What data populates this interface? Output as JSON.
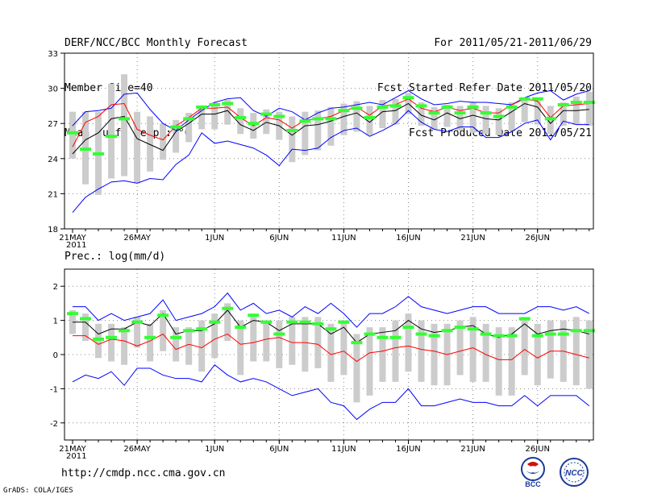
{
  "header": {
    "left": [
      "DERF/NCC/BCC Monthly Forecast",
      "Member Size=40",
      "Mean Surf. Temp.: °C"
    ],
    "right": [
      "For 2011/05/21-2011/06/29",
      "Fcst Started Refer Date 2011/05/20",
      "Fcst Produced Date 2011/05/21"
    ]
  },
  "url": "http://cmdp.ncc.cma.gov.cn",
  "footer": "GrADS: COLA/IGES",
  "logos": {
    "bcc": "BCC",
    "ncc": "NCC"
  },
  "colors": {
    "max_min": "#0000ff",
    "mean": "#000000",
    "median": "#ff0000",
    "box": "#cccccc",
    "obs": "#33ff33"
  },
  "chart_data": [
    {
      "type": "line",
      "title": "Mean Surf. Temp.: °C",
      "xlabel": "",
      "ylabel": "°C",
      "ylim": [
        18,
        33
      ],
      "yticks": [
        18,
        21,
        24,
        27,
        30,
        33
      ],
      "xticks": [
        {
          "index": 0,
          "label": "21MAY",
          "sub": "2011"
        },
        {
          "index": 5,
          "label": "26MAY"
        },
        {
          "index": 11,
          "label": "1JUN"
        },
        {
          "index": 16,
          "label": "6JUN"
        },
        {
          "index": 21,
          "label": "11JUN"
        },
        {
          "index": 26,
          "label": "16JUN"
        },
        {
          "index": 31,
          "label": "21JUN"
        },
        {
          "index": 36,
          "label": "26JUN"
        }
      ],
      "series": [
        {
          "name": "max",
          "values": [
            26.8,
            28.0,
            28.1,
            28.3,
            29.5,
            29.6,
            28.2,
            27.0,
            26.4,
            27.3,
            28.1,
            28.8,
            29.1,
            29.2,
            28.1,
            27.6,
            28.3,
            28.0,
            27.3,
            27.9,
            28.3,
            28.4,
            28.6,
            28.8,
            28.6,
            29.2,
            29.8,
            29.1,
            28.6,
            28.7,
            28.9,
            28.8,
            28.8,
            28.7,
            28.6,
            29.2,
            29.6,
            29.8,
            29.0,
            29.5,
            29.8
          ]
        },
        {
          "name": "median",
          "values": [
            25.0,
            27.1,
            27.6,
            28.6,
            28.7,
            26.5,
            26.0,
            25.6,
            26.8,
            27.5,
            28.3,
            28.3,
            28.4,
            27.5,
            26.8,
            27.5,
            27.3,
            26.6,
            27.3,
            27.4,
            27.6,
            28.1,
            28.4,
            27.7,
            28.5,
            28.6,
            29.1,
            28.3,
            28.0,
            28.4,
            28.1,
            28.3,
            27.9,
            27.9,
            28.6,
            29.1,
            28.9,
            27.5,
            28.5,
            28.6,
            28.7
          ]
        },
        {
          "name": "mean",
          "values": [
            24.4,
            25.6,
            26.2,
            27.4,
            27.6,
            25.7,
            25.2,
            24.7,
            26.3,
            27.0,
            27.8,
            27.8,
            28.1,
            26.9,
            26.4,
            27.1,
            26.8,
            26.0,
            26.8,
            26.9,
            27.2,
            27.6,
            27.9,
            27.1,
            28.0,
            28.1,
            28.7,
            27.7,
            27.3,
            27.9,
            27.4,
            27.7,
            27.4,
            27.3,
            28.0,
            28.7,
            28.4,
            27.0,
            28.1,
            28.1,
            28.2
          ]
        },
        {
          "name": "min",
          "values": [
            19.4,
            20.7,
            21.4,
            22.0,
            22.1,
            21.9,
            22.3,
            22.2,
            23.5,
            24.3,
            26.2,
            25.3,
            25.5,
            25.2,
            24.9,
            24.3,
            23.4,
            24.8,
            24.7,
            24.9,
            25.8,
            26.4,
            26.6,
            25.9,
            26.4,
            27.0,
            28.1,
            27.1,
            26.5,
            26.3,
            26.7,
            26.7,
            25.8,
            25.8,
            26.3,
            27.0,
            27.3,
            25.6,
            27.2,
            26.9,
            26.9
          ]
        }
      ],
      "boxes": [
        {
          "low": 24.0,
          "high": 28.0
        },
        {
          "low": 21.8,
          "high": 28.0
        },
        {
          "low": 20.9,
          "high": 28.0
        },
        {
          "low": 22.3,
          "high": 30.4
        },
        {
          "low": 22.5,
          "high": 31.2
        },
        {
          "low": 21.9,
          "high": 28.0
        },
        {
          "low": 22.9,
          "high": 27.6
        },
        {
          "low": 23.9,
          "high": 27.0
        },
        {
          "low": 24.5,
          "high": 27.3
        },
        {
          "low": 25.4,
          "high": 27.9
        },
        {
          "low": 26.5,
          "high": 28.5
        },
        {
          "low": 26.5,
          "high": 28.8
        },
        {
          "low": 26.9,
          "high": 29.0
        },
        {
          "low": 26.1,
          "high": 28.3
        },
        {
          "low": 25.7,
          "high": 27.9
        },
        {
          "low": 26.1,
          "high": 28.2
        },
        {
          "low": 25.6,
          "high": 28.0
        },
        {
          "low": 23.7,
          "high": 27.6
        },
        {
          "low": 24.3,
          "high": 28.0
        },
        {
          "low": 24.7,
          "high": 28.1
        },
        {
          "low": 25.1,
          "high": 28.4
        },
        {
          "low": 26.0,
          "high": 28.7
        },
        {
          "low": 26.3,
          "high": 28.9
        },
        {
          "low": 26.0,
          "high": 28.5
        },
        {
          "low": 26.6,
          "high": 29.0
        },
        {
          "low": 26.9,
          "high": 29.1
        },
        {
          "low": 27.8,
          "high": 29.6
        },
        {
          "low": 26.8,
          "high": 28.8
        },
        {
          "low": 26.5,
          "high": 28.4
        },
        {
          "low": 26.7,
          "high": 28.6
        },
        {
          "low": 26.4,
          "high": 28.5
        },
        {
          "low": 26.2,
          "high": 28.8
        },
        {
          "low": 26.1,
          "high": 28.5
        },
        {
          "low": 26.0,
          "high": 28.3
        },
        {
          "low": 26.4,
          "high": 28.8
        },
        {
          "low": 27.1,
          "high": 29.2
        },
        {
          "low": 26.9,
          "high": 29.2
        },
        {
          "low": 26.1,
          "high": 28.5
        },
        {
          "low": 26.8,
          "high": 28.8
        },
        {
          "low": 26.9,
          "high": 29.3
        },
        {
          "low": 26.8,
          "high": 29.7
        }
      ],
      "observed": [
        26.2,
        24.8,
        24.4,
        25.9,
        27.4,
        null,
        null,
        null,
        26.7,
        27.4,
        28.4,
        28.6,
        28.7,
        27.5,
        27.0,
        27.8,
        27.6,
        26.4,
        27.2,
        27.4,
        27.4,
        28.1,
        28.3,
        27.5,
        28.4,
        28.5,
        29.2,
        28.5,
        27.9,
        28.4,
        27.9,
        28.4,
        27.9,
        27.6,
        28.4,
        29.1,
        29.1,
        27.4,
        28.6,
        28.8,
        28.8
      ]
    },
    {
      "type": "line",
      "title": "Prec.: log(mm/d)",
      "xlabel": "",
      "ylabel": "log(mm/d)",
      "ylim": [
        -2.5,
        2.5
      ],
      "yticks": [
        -2,
        -1,
        0,
        1,
        2
      ],
      "xticks": [
        {
          "index": 0,
          "label": "21MAY",
          "sub": "2011"
        },
        {
          "index": 5,
          "label": "26MAY"
        },
        {
          "index": 11,
          "label": "1JUN"
        },
        {
          "index": 16,
          "label": "6JUN"
        },
        {
          "index": 21,
          "label": "11JUN"
        },
        {
          "index": 26,
          "label": "16JUN"
        },
        {
          "index": 31,
          "label": "21JUN"
        },
        {
          "index": 36,
          "label": "26JUN"
        }
      ],
      "series": [
        {
          "name": "max",
          "values": [
            1.4,
            1.4,
            1.0,
            1.2,
            1.0,
            1.1,
            1.2,
            1.6,
            1.0,
            1.1,
            1.2,
            1.4,
            1.8,
            1.3,
            1.5,
            1.2,
            1.3,
            1.1,
            1.4,
            1.2,
            1.5,
            1.2,
            0.8,
            1.2,
            1.2,
            1.4,
            1.7,
            1.4,
            1.3,
            1.2,
            1.3,
            1.4,
            1.4,
            1.2,
            1.2,
            1.2,
            1.4,
            1.4,
            1.3,
            1.4,
            1.2
          ]
        },
        {
          "name": "mean",
          "values": [
            0.95,
            0.95,
            0.6,
            0.75,
            0.75,
            0.95,
            0.85,
            1.2,
            0.6,
            0.7,
            0.7,
            0.9,
            1.3,
            0.8,
            1.0,
            0.95,
            0.7,
            0.9,
            0.9,
            0.9,
            0.6,
            0.8,
            0.35,
            0.6,
            0.65,
            0.7,
            1.0,
            0.75,
            0.65,
            0.7,
            0.8,
            0.85,
            0.6,
            0.5,
            0.6,
            0.9,
            0.6,
            0.7,
            0.75,
            0.7,
            0.6
          ]
        },
        {
          "name": "median",
          "values": [
            0.55,
            0.55,
            0.3,
            0.45,
            0.4,
            0.25,
            0.4,
            0.6,
            0.15,
            0.3,
            0.2,
            0.45,
            0.6,
            0.3,
            0.35,
            0.45,
            0.5,
            0.35,
            0.35,
            0.3,
            0.0,
            0.1,
            -0.2,
            0.05,
            0.1,
            0.2,
            0.25,
            0.15,
            0.1,
            0.0,
            0.1,
            0.2,
            0.0,
            -0.15,
            -0.15,
            0.15,
            -0.1,
            0.1,
            0.1,
            0.0,
            -0.1
          ]
        },
        {
          "name": "min",
          "values": [
            -0.8,
            -0.6,
            -0.7,
            -0.5,
            -0.9,
            -0.4,
            -0.4,
            -0.6,
            -0.7,
            -0.7,
            -0.8,
            -0.3,
            -0.6,
            -0.8,
            -0.7,
            -0.8,
            -1.0,
            -1.2,
            -1.1,
            -1.0,
            -1.4,
            -1.5,
            -1.9,
            -1.6,
            -1.4,
            -1.4,
            -1.0,
            -1.5,
            -1.5,
            -1.4,
            -1.3,
            -1.4,
            -1.4,
            -1.5,
            -1.5,
            -1.2,
            -1.5,
            -1.2,
            -1.2,
            -1.2,
            -1.5
          ]
        }
      ],
      "boxes": [
        {
          "low": 0.6,
          "high": 1.3
        },
        {
          "low": 0.4,
          "high": 1.2
        },
        {
          "low": -0.1,
          "high": 0.9
        },
        {
          "low": -0.2,
          "high": 0.9
        },
        {
          "low": -0.3,
          "high": 0.8
        },
        {
          "low": 0.2,
          "high": 1.1
        },
        {
          "low": -0.2,
          "high": 0.9
        },
        {
          "low": 0.1,
          "high": 1.3
        },
        {
          "low": -0.2,
          "high": 0.8
        },
        {
          "low": -0.3,
          "high": 0.8
        },
        {
          "low": -0.5,
          "high": 1.0
        },
        {
          "low": -0.1,
          "high": 1.2
        },
        {
          "low": 0.4,
          "high": 1.5
        },
        {
          "low": -0.6,
          "high": 1.0
        },
        {
          "low": -0.2,
          "high": 1.2
        },
        {
          "low": -0.2,
          "high": 1.0
        },
        {
          "low": -0.4,
          "high": 1.0
        },
        {
          "low": -0.3,
          "high": 1.1
        },
        {
          "low": -0.5,
          "high": 1.1
        },
        {
          "low": -0.4,
          "high": 1.1
        },
        {
          "low": -0.8,
          "high": 0.9
        },
        {
          "low": -0.6,
          "high": 1.0
        },
        {
          "low": -1.4,
          "high": 0.6
        },
        {
          "low": -1.2,
          "high": 0.8
        },
        {
          "low": -0.8,
          "high": 0.8
        },
        {
          "low": -0.8,
          "high": 1.0
        },
        {
          "low": -0.5,
          "high": 1.2
        },
        {
          "low": -0.8,
          "high": 1.0
        },
        {
          "low": -0.9,
          "high": 0.9
        },
        {
          "low": -0.9,
          "high": 0.9
        },
        {
          "low": -0.6,
          "high": 1.0
        },
        {
          "low": -0.8,
          "high": 1.1
        },
        {
          "low": -0.8,
          "high": 0.9
        },
        {
          "low": -1.2,
          "high": 0.8
        },
        {
          "low": -1.2,
          "high": 0.8
        },
        {
          "low": -0.6,
          "high": 1.1
        },
        {
          "low": -0.9,
          "high": 0.9
        },
        {
          "low": -0.7,
          "high": 1.0
        },
        {
          "low": -0.8,
          "high": 1.0
        },
        {
          "low": -0.9,
          "high": 1.1
        },
        {
          "low": -1.0,
          "high": 1.0
        }
      ],
      "observed": [
        1.2,
        1.05,
        0.45,
        0.5,
        0.7,
        0.95,
        0.5,
        1.15,
        0.5,
        0.7,
        0.75,
        0.95,
        1.35,
        0.8,
        1.15,
        0.95,
        0.6,
        0.95,
        0.95,
        0.9,
        0.75,
        0.95,
        0.35,
        0.6,
        0.5,
        0.5,
        0.8,
        0.6,
        0.55,
        0.7,
        0.8,
        0.75,
        0.6,
        0.55,
        0.55,
        1.05,
        0.55,
        0.6,
        0.6,
        0.7,
        0.7
      ]
    }
  ]
}
